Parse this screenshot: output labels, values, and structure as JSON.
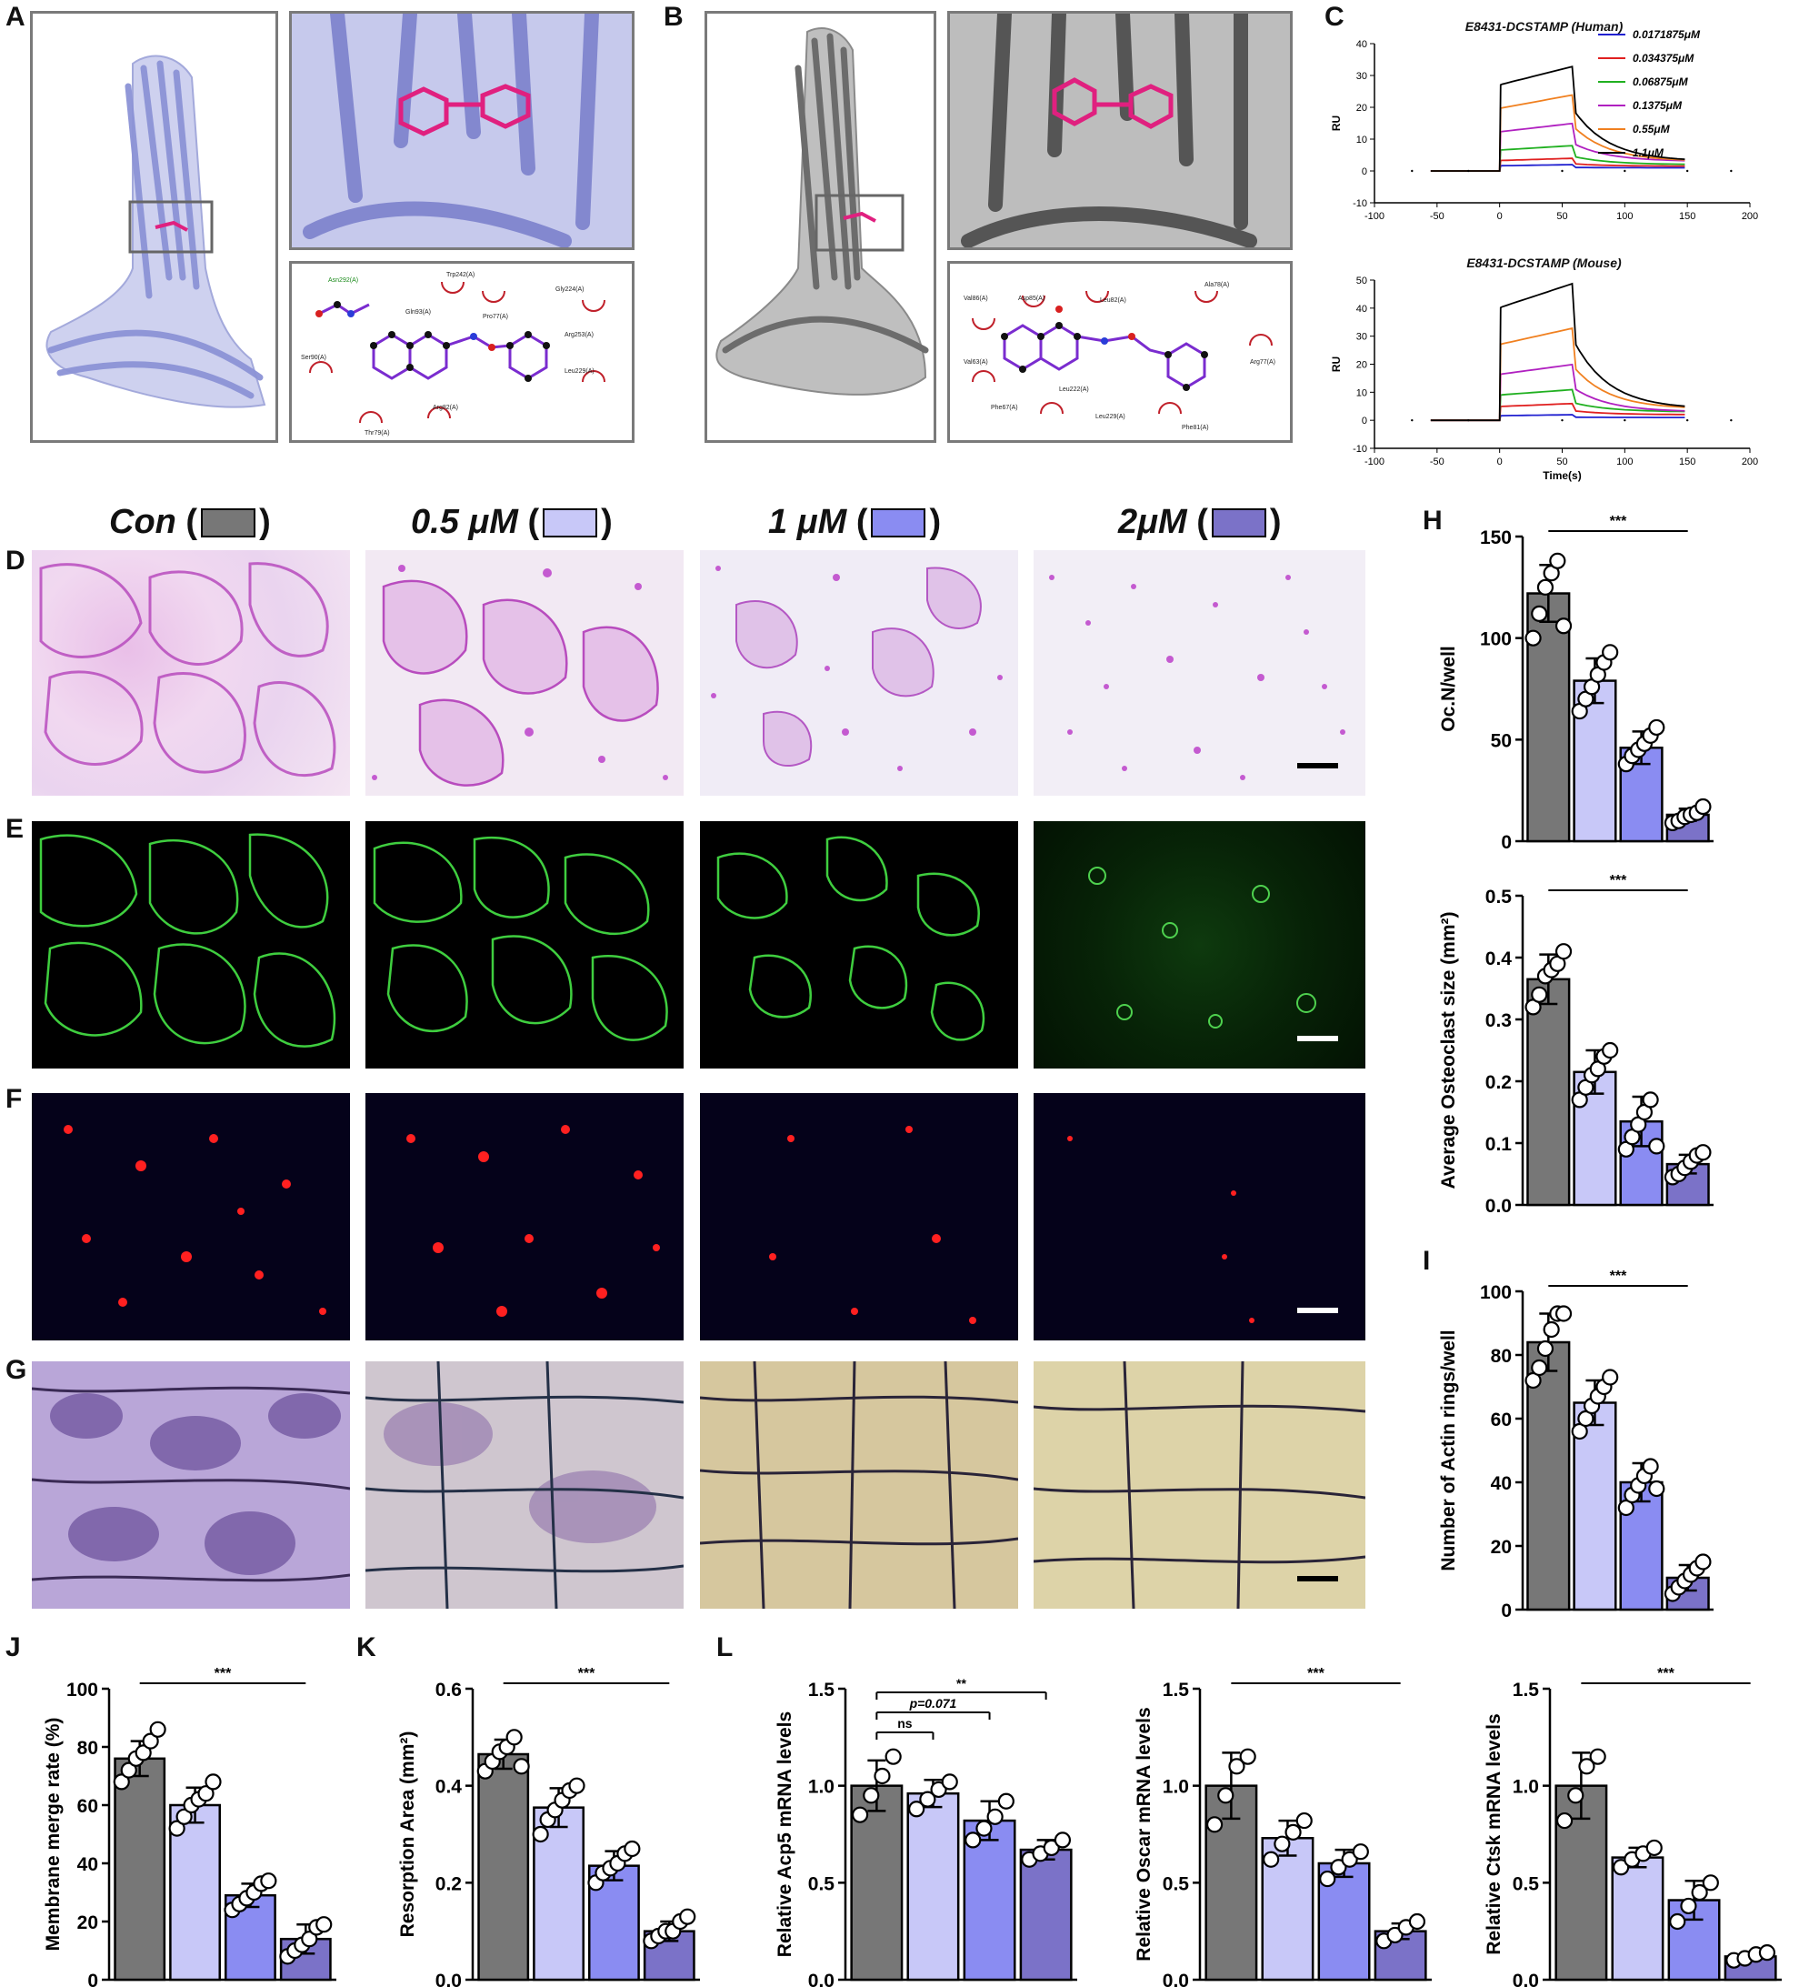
{
  "panel_labels": {
    "A": "A",
    "B": "B",
    "C": "C",
    "D": "D",
    "E": "E",
    "F": "F",
    "G": "G",
    "H": "H",
    "I": "I",
    "J": "J",
    "K": "K",
    "L": "L"
  },
  "colors": {
    "con": "#777777",
    "c05": "#c8c8f8",
    "c1": "#8a8cf2",
    "c2": "#7b72c8",
    "lavender": "#b9bde6",
    "grey_protein": "#7f7f7f",
    "ligand": "#e0207f"
  },
  "column_headers": [
    {
      "text": "Con",
      "color": "#777777"
    },
    {
      "text": "0.5 μM",
      "color": "#c8c8f8"
    },
    {
      "text": "1 μM",
      "color": "#8a8cf2"
    },
    {
      "text": "2μM",
      "color": "#7b72c8"
    }
  ],
  "docking": {
    "A_residues": [
      "Asn292(A)",
      "Trp242(A)",
      "Gly224(A)",
      "Gln93(A)",
      "Pro77(A)",
      "Arg253(A)",
      "Ser90(A)",
      "Leu229(A)",
      "Thr79(A)",
      "Arg82(A)"
    ],
    "B_residues": [
      "Val86(A)",
      "Asp85(A)",
      "Leu82(A)",
      "Ala78(A)",
      "Val63(A)",
      "Arg77(A)",
      "Phe67(A)",
      "Leu229(A)",
      "Leu222(A)",
      "Phe81(A)"
    ]
  },
  "chart_data": [
    {
      "id": "C-top",
      "type": "line",
      "title": "E8431-DCSTAMP (Human)",
      "xlabel": "",
      "ylabel": "RU",
      "xlim": [
        -100,
        200
      ],
      "ylim": [
        -10,
        40
      ],
      "xticks": [
        -100,
        -50,
        0,
        50,
        100,
        150,
        200
      ],
      "yticks": [
        -10,
        0,
        10,
        20,
        30,
        40
      ],
      "series": [
        {
          "name": "0.0171875μM",
          "color": "#2020d0",
          "plateau": 2,
          "end": 1
        },
        {
          "name": "0.034375μM",
          "color": "#e02020",
          "plateau": 4,
          "end": 1.5
        },
        {
          "name": "0.06875μM",
          "color": "#20b020",
          "plateau": 8,
          "end": 2
        },
        {
          "name": "0.1375μM",
          "color": "#b020c0",
          "plateau": 15,
          "end": 3
        },
        {
          "name": "0.55μM",
          "color": "#f08020",
          "plateau": 24,
          "end": 3
        },
        {
          "name": "1.1μM",
          "color": "#000000",
          "plateau": 33,
          "end": 3
        }
      ]
    },
    {
      "id": "C-bottom",
      "type": "line",
      "title": "E8431-DCSTAMP (Mouse)",
      "xlabel": "Time(s)",
      "ylabel": "RU",
      "xlim": [
        -100,
        200
      ],
      "ylim": [
        -10,
        50
      ],
      "xticks": [
        -100,
        -50,
        0,
        50,
        100,
        150,
        200
      ],
      "yticks": [
        -10,
        0,
        10,
        20,
        30,
        40,
        50
      ],
      "series": [
        {
          "name": "0.0171875μM",
          "color": "#2020d0",
          "plateau": 2,
          "end": 1
        },
        {
          "name": "0.034375μM",
          "color": "#e02020",
          "plateau": 6,
          "end": 2
        },
        {
          "name": "0.06875μM",
          "color": "#20b020",
          "plateau": 11,
          "end": 3
        },
        {
          "name": "0.1375μM",
          "color": "#b020c0",
          "plateau": 20,
          "end": 3
        },
        {
          "name": "0.55μM",
          "color": "#f08020",
          "plateau": 33,
          "end": 4
        },
        {
          "name": "1.1μM",
          "color": "#000000",
          "plateau": 49,
          "end": 4
        }
      ]
    },
    {
      "id": "H1",
      "type": "bar",
      "ylabel": "Oc.N/well",
      "ylim": [
        0,
        150
      ],
      "yticks": [
        0,
        50,
        100,
        150
      ],
      "sig": "***",
      "values": [
        122,
        79,
        46,
        13
      ],
      "err": [
        14,
        11,
        8,
        3
      ],
      "points": [
        [
          100,
          112,
          125,
          132,
          138,
          106
        ],
        [
          64,
          70,
          76,
          82,
          88,
          93
        ],
        [
          38,
          42,
          45,
          48,
          52,
          56
        ],
        [
          9,
          10,
          12,
          13,
          14,
          17
        ]
      ]
    },
    {
      "id": "H2",
      "type": "bar",
      "ylabel": "Average Osteoclast size (mm²)",
      "ylim": [
        0,
        0.5
      ],
      "yticks": [
        0,
        0.1,
        0.2,
        0.3,
        0.4,
        0.5
      ],
      "sig": "***",
      "values": [
        0.365,
        0.215,
        0.135,
        0.066
      ],
      "err": [
        0.04,
        0.035,
        0.04,
        0.015
      ],
      "points": [
        [
          0.32,
          0.34,
          0.37,
          0.38,
          0.39,
          0.41
        ],
        [
          0.17,
          0.19,
          0.21,
          0.22,
          0.24,
          0.25
        ],
        [
          0.09,
          0.11,
          0.13,
          0.15,
          0.17,
          0.095
        ],
        [
          0.045,
          0.05,
          0.06,
          0.07,
          0.08,
          0.085
        ]
      ]
    },
    {
      "id": "I",
      "type": "bar",
      "ylabel": "Number of Actin rings/well",
      "ylim": [
        0,
        100
      ],
      "yticks": [
        0,
        20,
        40,
        60,
        80,
        100
      ],
      "sig": "***",
      "values": [
        84,
        65,
        40,
        10
      ],
      "err": [
        9,
        7,
        6,
        4
      ],
      "points": [
        [
          72,
          76,
          82,
          88,
          93,
          93
        ],
        [
          56,
          60,
          64,
          67,
          70,
          73
        ],
        [
          32,
          36,
          39,
          42,
          45,
          38
        ],
        [
          5,
          7,
          9,
          11,
          13,
          15
        ]
      ]
    },
    {
      "id": "J",
      "type": "bar",
      "ylabel": "Membrane merge rate (%)",
      "ylim": [
        0,
        100
      ],
      "yticks": [
        0,
        20,
        40,
        60,
        80,
        100
      ],
      "sig": "***",
      "values": [
        76,
        60,
        29,
        14
      ],
      "err": [
        6,
        6,
        4,
        5
      ],
      "points": [
        [
          68,
          72,
          76,
          78,
          82,
          86
        ],
        [
          52,
          56,
          60,
          62,
          64,
          68
        ],
        [
          24,
          26,
          28,
          30,
          33,
          34
        ],
        [
          8,
          10,
          12,
          14,
          18,
          19
        ]
      ]
    },
    {
      "id": "K",
      "type": "bar",
      "ylabel": "Resorption Area (mm²)",
      "ylim": [
        0,
        0.6
      ],
      "yticks": [
        0,
        0.2,
        0.4,
        0.6
      ],
      "sig": "***",
      "values": [
        0.465,
        0.355,
        0.235,
        0.1
      ],
      "err": [
        0.03,
        0.04,
        0.03,
        0.02
      ],
      "points": [
        [
          0.43,
          0.45,
          0.47,
          0.48,
          0.5,
          0.44
        ],
        [
          0.3,
          0.33,
          0.35,
          0.37,
          0.39,
          0.4
        ],
        [
          0.2,
          0.22,
          0.23,
          0.24,
          0.26,
          0.27
        ],
        [
          0.08,
          0.09,
          0.1,
          0.1,
          0.12,
          0.13
        ]
      ]
    },
    {
      "id": "L1",
      "type": "bar",
      "ylabel": "Relative Acp5 mRNA levels",
      "ylim": [
        0,
        1.5
      ],
      "yticks": [
        0.0,
        0.5,
        1.0,
        1.5
      ],
      "values": [
        1.0,
        0.96,
        0.82,
        0.67
      ],
      "err": [
        0.13,
        0.07,
        0.1,
        0.05
      ],
      "points": [
        [
          0.85,
          0.95,
          1.05,
          1.15
        ],
        [
          0.88,
          0.93,
          0.98,
          1.02
        ],
        [
          0.72,
          0.78,
          0.84,
          0.92
        ],
        [
          0.62,
          0.65,
          0.68,
          0.72
        ]
      ],
      "sig_lines": [
        {
          "from": 0,
          "to": 1,
          "text": "ns"
        },
        {
          "from": 0,
          "to": 2,
          "text": "p=0.071"
        },
        {
          "from": 0,
          "to": 3,
          "text": "**"
        }
      ]
    },
    {
      "id": "L2",
      "type": "bar",
      "ylabel": "Relative Oscar mRNA levels",
      "ylim": [
        0,
        1.5
      ],
      "yticks": [
        0.0,
        0.5,
        1.0,
        1.5
      ],
      "sig": "***",
      "values": [
        1.0,
        0.73,
        0.6,
        0.25
      ],
      "err": [
        0.17,
        0.09,
        0.07,
        0.04
      ],
      "points": [
        [
          0.8,
          0.95,
          1.1,
          1.15
        ],
        [
          0.62,
          0.7,
          0.76,
          0.82
        ],
        [
          0.52,
          0.58,
          0.62,
          0.66
        ],
        [
          0.2,
          0.23,
          0.27,
          0.3
        ]
      ]
    },
    {
      "id": "L3",
      "type": "bar",
      "ylabel": "Relative Ctsk mRNA levels",
      "ylim": [
        0,
        1.5
      ],
      "yticks": [
        0.0,
        0.5,
        1.0,
        1.5
      ],
      "sig": "***",
      "values": [
        1.0,
        0.63,
        0.41,
        0.12
      ],
      "err": [
        0.17,
        0.05,
        0.1,
        0.02
      ],
      "points": [
        [
          0.82,
          0.95,
          1.1,
          1.15
        ],
        [
          0.58,
          0.62,
          0.65,
          0.68
        ],
        [
          0.3,
          0.38,
          0.45,
          0.5
        ],
        [
          0.1,
          0.11,
          0.13,
          0.14
        ]
      ]
    }
  ]
}
